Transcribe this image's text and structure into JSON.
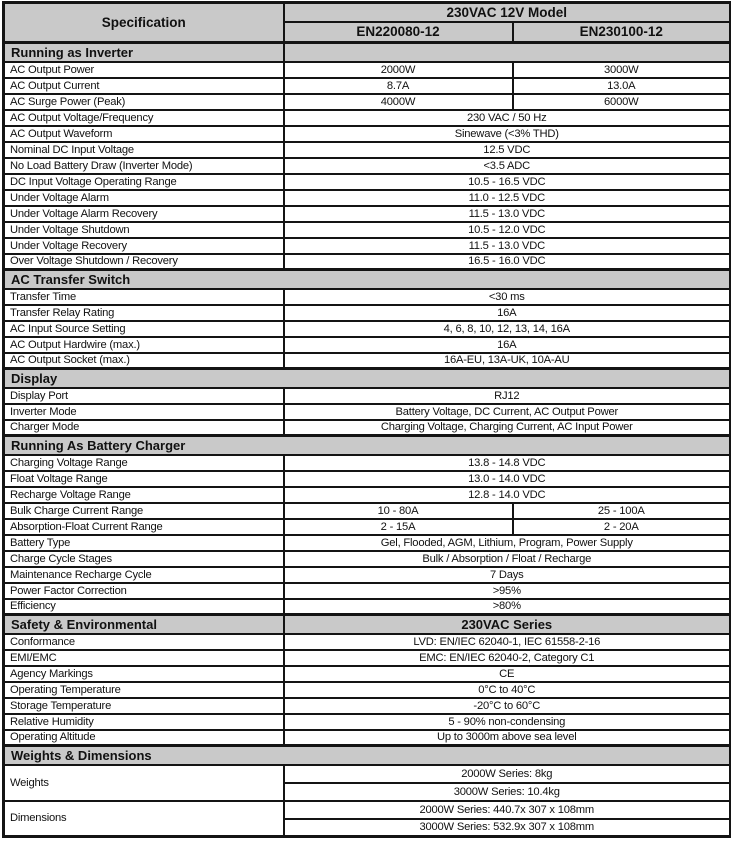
{
  "table": {
    "header": {
      "spec_label": "Specification",
      "model_group": "230VAC 12V Model",
      "models": [
        "EN220080-12",
        "EN230100-12"
      ]
    },
    "rows": [
      {
        "type": "section",
        "split": true,
        "label": "Running as Inverter",
        "right": ""
      },
      {
        "type": "two",
        "label": "AC Output Power",
        "v1": "2000W",
        "v2": "3000W"
      },
      {
        "type": "two",
        "label": "AC Output Current",
        "v1": "8.7A",
        "v2": "13.0A"
      },
      {
        "type": "two",
        "label": "AC Surge Power (Peak)",
        "v1": "4000W",
        "v2": "6000W"
      },
      {
        "type": "one",
        "label": "AC Output Voltage/Frequency",
        "v": "230 VAC / 50 Hz"
      },
      {
        "type": "one",
        "label": "AC Output Waveform",
        "v": "Sinewave (<3% THD)"
      },
      {
        "type": "one",
        "label": "Nominal DC Input Voltage",
        "v": "12.5 VDC"
      },
      {
        "type": "one",
        "label": "No Load Battery Draw (Inverter Mode)",
        "v": "<3.5 ADC"
      },
      {
        "type": "one",
        "label": "DC Input Voltage Operating Range",
        "v": "10.5 - 16.5 VDC"
      },
      {
        "type": "one",
        "label": "Under Voltage Alarm",
        "v": "11.0 - 12.5 VDC"
      },
      {
        "type": "one",
        "label": "Under Voltage Alarm Recovery",
        "v": "11.5 - 13.0 VDC"
      },
      {
        "type": "one",
        "label": "Under Voltage Shutdown",
        "v": "10.5 - 12.0 VDC"
      },
      {
        "type": "one",
        "label": "Under Voltage Recovery",
        "v": "11.5 - 13.0 VDC"
      },
      {
        "type": "one",
        "label": "Over Voltage Shutdown / Recovery",
        "v": "16.5 - 16.0 VDC"
      },
      {
        "type": "section",
        "label": "AC Transfer Switch"
      },
      {
        "type": "one",
        "label": "Transfer Time",
        "v": "<30 ms"
      },
      {
        "type": "one",
        "label": "Transfer Relay Rating",
        "v": "16A"
      },
      {
        "type": "one",
        "label": "AC Input Source Setting",
        "v": "4, 6, 8, 10, 12, 13, 14, 16A"
      },
      {
        "type": "one",
        "label": "AC Output Hardwire (max.)",
        "v": "16A"
      },
      {
        "type": "one",
        "label": "AC Output Socket (max.)",
        "v": "16A-EU, 13A-UK, 10A-AU"
      },
      {
        "type": "section",
        "label": "Display"
      },
      {
        "type": "one",
        "label": "Display Port",
        "v": "RJ12"
      },
      {
        "type": "one",
        "label": "Inverter Mode",
        "v": "Battery Voltage, DC Current, AC Output Power"
      },
      {
        "type": "one",
        "label": "Charger Mode",
        "v": "Charging Voltage, Charging Current, AC Input Power"
      },
      {
        "type": "section",
        "label": "Running As Battery Charger"
      },
      {
        "type": "one",
        "label": "Charging Voltage Range",
        "v": "13.8 - 14.8 VDC"
      },
      {
        "type": "one",
        "label": "Float Voltage Range",
        "v": "13.0 - 14.0 VDC"
      },
      {
        "type": "one",
        "label": "Recharge Voltage Range",
        "v": "12.8 - 14.0 VDC"
      },
      {
        "type": "two",
        "label": "Bulk Charge Current Range",
        "v1": "10 - 80A",
        "v2": "25 - 100A"
      },
      {
        "type": "two",
        "label": "Absorption-Float Current Range",
        "v1": "2 - 15A",
        "v2": "2 - 20A"
      },
      {
        "type": "one",
        "label": "Battery Type",
        "v": "Gel, Flooded, AGM, Lithium, Program, Power Supply"
      },
      {
        "type": "one",
        "label": "Charge Cycle Stages",
        "v": "Bulk / Absorption / Float / Recharge"
      },
      {
        "type": "one",
        "label": "Maintenance Recharge Cycle",
        "v": "7 Days"
      },
      {
        "type": "one",
        "label": "Power Factor Correction",
        "v": ">95%"
      },
      {
        "type": "one",
        "label": "Efficiency",
        "v": ">80%"
      },
      {
        "type": "section",
        "split": true,
        "label": "Safety & Environmental",
        "right": "230VAC Series"
      },
      {
        "type": "one",
        "label": "Conformance",
        "v": "LVD: EN/IEC 62040-1, IEC 61558-2-16"
      },
      {
        "type": "one",
        "label": "EMI/EMC",
        "v": "EMC: EN/IEC 62040-2, Category C1"
      },
      {
        "type": "one",
        "label": "Agency Markings",
        "v": "CE"
      },
      {
        "type": "one",
        "label": "Operating Temperature",
        "v": "0°C to 40°C"
      },
      {
        "type": "one",
        "label": "Storage Temperature",
        "v": "-20°C to 60°C"
      },
      {
        "type": "one",
        "label": "Relative Humidity",
        "v": "5 - 90% non-condensing"
      },
      {
        "type": "one",
        "label": "Operating Altitude",
        "v": "Up to 3000m above sea level"
      },
      {
        "type": "section",
        "label": "Weights & Dimensions"
      },
      {
        "type": "group",
        "label": "Weights",
        "values": [
          "2000W Series: 8kg",
          "3000W Series: 10.4kg"
        ]
      },
      {
        "type": "group",
        "label": "Dimensions",
        "values": [
          "2000W Series: 440.7x 307 x 108mm",
          "3000W Series: 532.9x 307 x 108mm"
        ]
      }
    ]
  }
}
